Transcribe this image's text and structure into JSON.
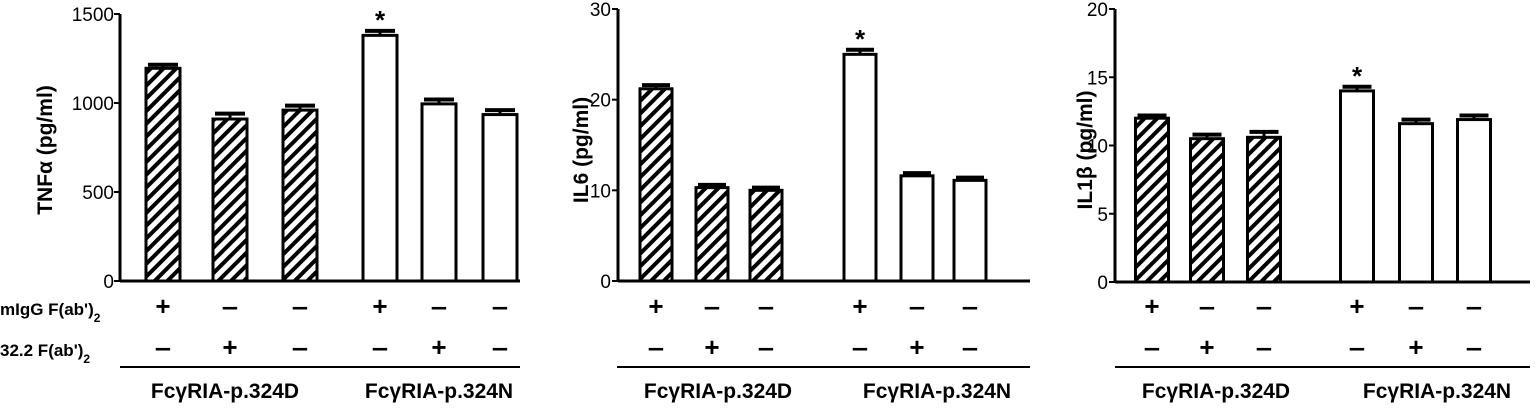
{
  "treatment_rows": [
    {
      "label": "mIgG F(ab')",
      "sub": "2",
      "signs": [
        "+",
        "-",
        "-",
        "+",
        "-",
        "-"
      ]
    },
    {
      "label": "32.2 F(ab')",
      "sub": "2",
      "signs": [
        "-",
        "+",
        "-",
        "-",
        "+",
        "-"
      ]
    }
  ],
  "groups": [
    "FcγRIA-p.324D",
    "FcγRIA-p.324N"
  ],
  "colors": {
    "ink": "#000000",
    "fill": "#ffffff"
  },
  "chart_data": [
    {
      "type": "bar",
      "ylabel": "TNFα (pg/ml)",
      "ylim": [
        0,
        1500
      ],
      "yticks": [
        0,
        500,
        1000,
        1500
      ],
      "values": [
        1195,
        910,
        960,
        1380,
        995,
        935
      ],
      "errors": [
        20,
        30,
        25,
        25,
        25,
        25
      ],
      "patterns": [
        "hatched",
        "hatched",
        "hatched",
        "open",
        "open",
        "open"
      ],
      "significance": [
        "",
        "",
        "",
        "*",
        "",
        ""
      ]
    },
    {
      "type": "bar",
      "ylabel": "IL6 (pg/ml)",
      "ylim": [
        0,
        30
      ],
      "yticks": [
        0,
        10,
        20,
        30
      ],
      "values": [
        21.2,
        10.3,
        10.0,
        25.0,
        11.6,
        11.1
      ],
      "errors": [
        0.4,
        0.3,
        0.3,
        0.5,
        0.3,
        0.3
      ],
      "patterns": [
        "hatched",
        "hatched",
        "hatched",
        "open",
        "open",
        "open"
      ],
      "significance": [
        "",
        "",
        "",
        "*",
        "",
        ""
      ]
    },
    {
      "type": "bar",
      "ylabel": "IL1β (pg/ml)",
      "ylim": [
        0,
        20
      ],
      "yticks": [
        0,
        5,
        10,
        15,
        20
      ],
      "values": [
        12.0,
        10.5,
        10.6,
        14.0,
        11.6,
        11.9
      ],
      "errors": [
        0.2,
        0.3,
        0.4,
        0.3,
        0.3,
        0.3
      ],
      "patterns": [
        "hatched",
        "hatched",
        "hatched",
        "open",
        "open",
        "open"
      ],
      "significance": [
        "",
        "",
        "",
        "*",
        "",
        ""
      ]
    }
  ]
}
